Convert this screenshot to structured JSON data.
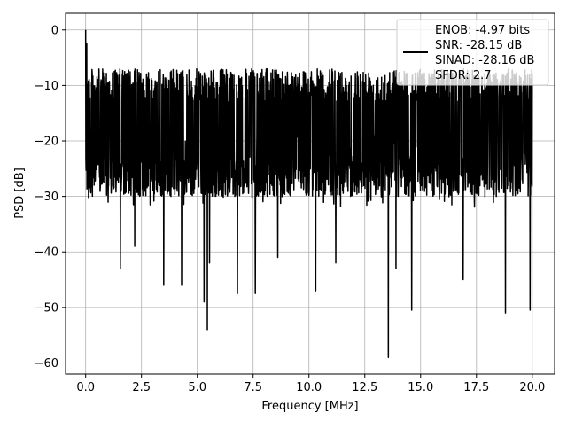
{
  "chart_data": {
    "type": "line",
    "xlabel": "Frequency [MHz]",
    "ylabel": "PSD [dB]",
    "xlim": [
      -0.9,
      21.0
    ],
    "ylim": [
      -62,
      3
    ],
    "xticks": [
      0.0,
      2.5,
      5.0,
      7.5,
      10.0,
      12.5,
      15.0,
      17.5,
      20.0
    ],
    "xtick_labels": [
      "0.0",
      "2.5",
      "5.0",
      "7.5",
      "10.0",
      "12.5",
      "15.0",
      "17.5",
      "20.0"
    ],
    "yticks": [
      0,
      -10,
      -20,
      -30,
      -40,
      -50,
      -60
    ],
    "ytick_labels": [
      "0",
      "−10",
      "−20",
      "−30",
      "−40",
      "−50",
      "−60"
    ],
    "grid": true,
    "legend_position": "top-right",
    "line_color": "#000000",
    "series": [
      {
        "name": "ENOB: -4.97 bits\nSNR: -28.15 dB\nSINAD: -28.16 dB\nSFDR: 2.7",
        "x_range": [
          0,
          20
        ],
        "points": 2049,
        "upper_envelope_db": -7,
        "lower_envelope_db": -30,
        "peaks": [
          {
            "x": 0.0,
            "y": 0.0
          },
          {
            "x": 0.05,
            "y": -2.5
          }
        ],
        "notable_dips": [
          {
            "x": 1.55,
            "y": -43
          },
          {
            "x": 2.2,
            "y": -39
          },
          {
            "x": 3.5,
            "y": -46
          },
          {
            "x": 4.3,
            "y": -46
          },
          {
            "x": 5.3,
            "y": -49
          },
          {
            "x": 5.45,
            "y": -54
          },
          {
            "x": 5.55,
            "y": -42
          },
          {
            "x": 6.8,
            "y": -47.5
          },
          {
            "x": 7.6,
            "y": -47.5
          },
          {
            "x": 8.6,
            "y": -41
          },
          {
            "x": 10.3,
            "y": -47
          },
          {
            "x": 11.2,
            "y": -42
          },
          {
            "x": 13.55,
            "y": -59
          },
          {
            "x": 13.9,
            "y": -43
          },
          {
            "x": 14.6,
            "y": -50.5
          },
          {
            "x": 16.9,
            "y": -45
          },
          {
            "x": 18.8,
            "y": -51
          },
          {
            "x": 19.9,
            "y": -50.5
          }
        ]
      }
    ]
  },
  "legend": {
    "lines": [
      "ENOB: -4.97 bits",
      "SNR: -28.15 dB",
      "SINAD: -28.16 dB",
      "SFDR: 2.7"
    ]
  }
}
